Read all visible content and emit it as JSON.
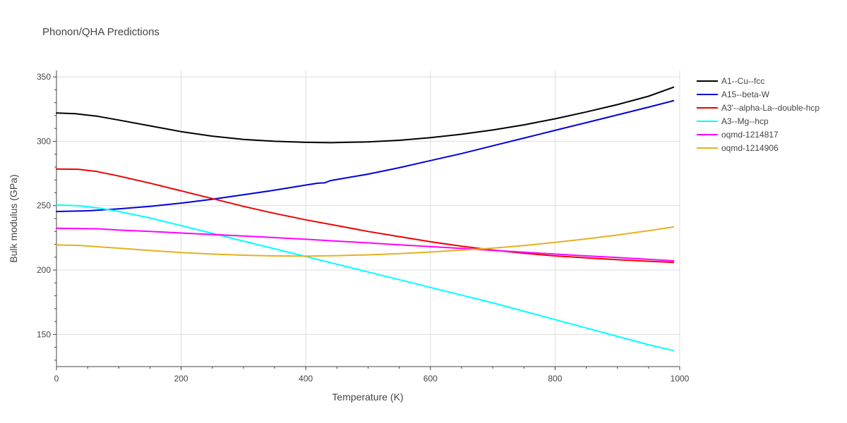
{
  "chart_data": {
    "type": "line",
    "title": "Phonon/QHA Predictions",
    "xlabel": "Temperature (K)",
    "ylabel": "Bulk modulus (GPa)",
    "xlim": [
      0,
      1000
    ],
    "ylim": [
      125,
      355
    ],
    "xticks": [
      0,
      200,
      400,
      600,
      800,
      1000
    ],
    "xtick_labels": [
      "0",
      "200",
      "400",
      "600",
      "800",
      "1000"
    ],
    "yticks": [
      150,
      200,
      250,
      300,
      350
    ],
    "ytick_labels": [
      "150",
      "200",
      "250",
      "300",
      "350"
    ],
    "grid": true,
    "legend_position": "right",
    "series": [
      {
        "name": "A1--Cu--fcc",
        "color": "#000000",
        "x": [
          0,
          30,
          65,
          100,
          150,
          200,
          250,
          300,
          350,
          400,
          440,
          500,
          550,
          600,
          650,
          700,
          750,
          800,
          850,
          900,
          950,
          990
        ],
        "y": [
          322,
          321.5,
          319.5,
          316.5,
          312,
          307.5,
          304,
          301.5,
          300,
          299.2,
          298.9,
          299.5,
          300.8,
          302.8,
          305.5,
          308.8,
          312.8,
          317.5,
          322.8,
          328.5,
          335,
          342
        ]
      },
      {
        "name": "A15--beta-W",
        "color": "#0000dd",
        "x": [
          0,
          50,
          100,
          150,
          200,
          250,
          300,
          350,
          400,
          420,
          430,
          440,
          500,
          550,
          600,
          650,
          700,
          750,
          800,
          850,
          900,
          950,
          990
        ],
        "y": [
          245.5,
          246,
          247.5,
          249.5,
          252,
          255,
          258.5,
          262,
          266,
          267.5,
          267.7,
          269.5,
          274.5,
          279.5,
          285,
          290.5,
          296.5,
          302.5,
          308.5,
          314.5,
          320.5,
          326.5,
          331.5
        ]
      },
      {
        "name": "A3'--alpha-La--double-hcp",
        "color": "#ee0000",
        "x": [
          0,
          35,
          65,
          100,
          150,
          200,
          250,
          300,
          350,
          400,
          450,
          500,
          550,
          600,
          650,
          700,
          750,
          800,
          850,
          900,
          950,
          990
        ],
        "y": [
          278.5,
          278.3,
          276.5,
          273,
          267.5,
          261.5,
          255.5,
          249.5,
          244,
          239,
          234.5,
          230,
          226,
          222,
          218.5,
          215.5,
          213,
          211,
          209.5,
          208,
          206.8,
          206
        ]
      },
      {
        "name": "A3--Mg--hcp",
        "color": "#00ffff",
        "x": [
          0,
          35,
          70,
          100,
          150,
          200,
          250,
          300,
          350,
          400,
          450,
          500,
          550,
          600,
          650,
          700,
          750,
          800,
          850,
          900,
          950,
          990
        ],
        "y": [
          250.5,
          250,
          248,
          245.5,
          240.5,
          234.5,
          228.5,
          222.5,
          216.5,
          210.5,
          204.5,
          198.5,
          192.5,
          186.5,
          180.5,
          174.5,
          168,
          161.5,
          155,
          148.5,
          142,
          137.5
        ]
      },
      {
        "name": "oqmd-1214817",
        "color": "#ff00ff",
        "x": [
          0,
          30,
          70,
          100,
          150,
          200,
          250,
          300,
          350,
          400,
          450,
          500,
          550,
          600,
          650,
          700,
          750,
          800,
          850,
          900,
          950,
          990
        ],
        "y": [
          232.5,
          232.3,
          232,
          231,
          230,
          228.8,
          227.6,
          226.5,
          225.2,
          223.9,
          222.5,
          221.1,
          219.6,
          218.2,
          216.8,
          215.3,
          213.8,
          212.4,
          211,
          209.7,
          208.3,
          207.2
        ]
      },
      {
        "name": "oqmd-1214906",
        "color": "#e6b020",
        "x": [
          0,
          40,
          70,
          100,
          150,
          200,
          250,
          300,
          350,
          400,
          450,
          500,
          550,
          600,
          650,
          700,
          750,
          800,
          850,
          900,
          950,
          990
        ],
        "y": [
          219.5,
          219,
          218,
          217,
          215.2,
          213.6,
          212.4,
          211.5,
          211,
          210.8,
          211.2,
          211.8,
          212.8,
          214,
          215.5,
          217,
          219,
          221.5,
          224.2,
          227.2,
          230.5,
          233.5
        ]
      }
    ]
  }
}
